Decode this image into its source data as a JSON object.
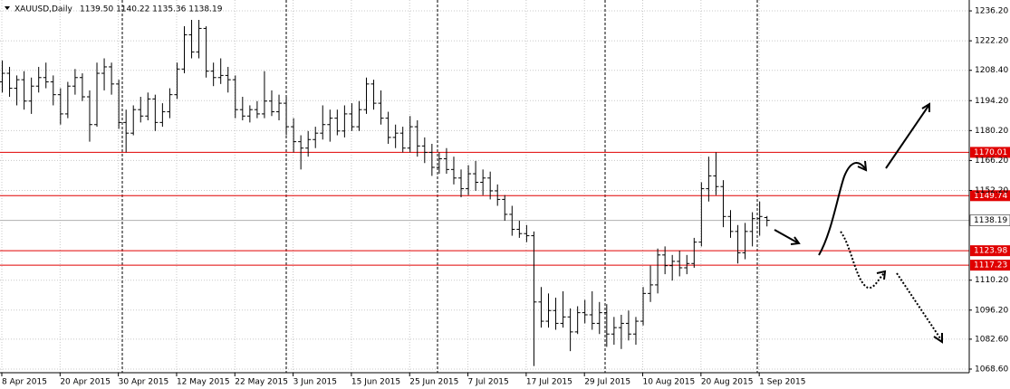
{
  "chart_data": {
    "type": "ohlc",
    "title": "XAUUSD,Daily",
    "ohlc_label": "1139.50 1140.22 1135.36 1138.19",
    "categories": [
      "8 Apr 2015",
      null,
      null,
      null,
      null,
      null,
      null,
      null,
      "20 Apr 2015",
      null,
      null,
      null,
      null,
      null,
      null,
      null,
      "30 Apr 2015",
      null,
      null,
      null,
      null,
      null,
      null,
      null,
      "12 May 2015",
      null,
      null,
      null,
      null,
      null,
      null,
      null,
      "22 May 2015",
      null,
      null,
      null,
      null,
      null,
      null,
      null,
      "3 Jun 2015",
      null,
      null,
      null,
      null,
      null,
      null,
      null,
      "15 Jun 2015",
      null,
      null,
      null,
      null,
      null,
      null,
      null,
      "25 Jun 2015",
      null,
      null,
      null,
      null,
      null,
      null,
      null,
      "7 Jul 2015",
      null,
      null,
      null,
      null,
      null,
      null,
      null,
      "17 Jul 2015",
      null,
      null,
      null,
      null,
      null,
      null,
      null,
      "29 Jul 2015",
      null,
      null,
      null,
      null,
      null,
      null,
      null,
      "10 Aug 2015",
      null,
      null,
      null,
      null,
      null,
      null,
      null,
      "20 Aug 2015",
      null,
      null,
      null,
      null,
      null,
      null,
      null,
      "1 Sep 2015",
      null
    ],
    "open": [
      1203,
      1207,
      1200,
      1204,
      1194,
      1201,
      1205,
      1203,
      1197,
      1188,
      1201,
      1205,
      1196,
      1183,
      1207,
      1210,
      1202,
      1184,
      1179,
      1190,
      1187,
      1195,
      1184,
      1189,
      1197,
      1209,
      1225,
      1217,
      1228,
      1208,
      1205,
      1206,
      1204,
      1190,
      1187,
      1190,
      1188,
      1194,
      1189,
      1193,
      1182,
      1175,
      1172,
      1176,
      1179,
      1183,
      1186,
      1180,
      1188,
      1182,
      1190,
      1202,
      1193,
      1186,
      1177,
      1179,
      1172,
      1182,
      1173,
      1170,
      1163,
      1167,
      1162,
      1158,
      1153,
      1160,
      1156,
      1158,
      1152,
      1148,
      1141,
      1134,
      1132,
      1131,
      1100,
      1091,
      1096,
      1090,
      1093,
      1086,
      1095,
      1094,
      1090,
      1095,
      1085,
      1088,
      1090,
      1085,
      1091,
      1104,
      1108,
      1122,
      1117,
      1119,
      1116,
      1118,
      1128,
      1153,
      1159,
      1154,
      1140,
      1133,
      1123,
      1133,
      1139,
      1139.5
    ],
    "high": [
      1213,
      1210,
      1206,
      1208,
      1205,
      1210,
      1212,
      1206,
      1200,
      1203,
      1209,
      1207,
      1199,
      1212,
      1214,
      1212,
      1204,
      1190,
      1192,
      1196,
      1198,
      1197,
      1193,
      1200,
      1212,
      1229,
      1232,
      1232,
      1229,
      1212,
      1214,
      1210,
      1206,
      1196,
      1192,
      1194,
      1208,
      1199,
      1197,
      1196,
      1186,
      1178,
      1180,
      1182,
      1192,
      1190,
      1190,
      1192,
      1193,
      1194,
      1205,
      1204,
      1199,
      1189,
      1183,
      1182,
      1187,
      1185,
      1177,
      1174,
      1170,
      1172,
      1168,
      1162,
      1164,
      1166,
      1162,
      1161,
      1155,
      1150,
      1145,
      1138,
      1136,
      1133,
      1107,
      1104,
      1102,
      1105,
      1097,
      1098,
      1101,
      1105,
      1100,
      1099,
      1093,
      1094,
      1096,
      1093,
      1107,
      1117,
      1125,
      1126,
      1122,
      1124,
      1122,
      1130,
      1156,
      1168,
      1170,
      1157,
      1143,
      1136,
      1137,
      1142,
      1147,
      1140.22
    ],
    "low": [
      1198,
      1196,
      1192,
      1190,
      1188,
      1198,
      1200,
      1192,
      1183,
      1186,
      1197,
      1194,
      1175,
      1182,
      1199,
      1197,
      1181,
      1170,
      1178,
      1184,
      1185,
      1180,
      1182,
      1186,
      1195,
      1207,
      1214,
      1214,
      1205,
      1201,
      1202,
      1198,
      1186,
      1185,
      1184,
      1186,
      1186,
      1187,
      1185,
      1178,
      1170,
      1162,
      1168,
      1172,
      1176,
      1175,
      1178,
      1177,
      1180,
      1180,
      1188,
      1190,
      1183,
      1174,
      1172,
      1170,
      1170,
      1168,
      1165,
      1159,
      1160,
      1160,
      1155,
      1149,
      1150,
      1152,
      1150,
      1148,
      1145,
      1138,
      1131,
      1130,
      1128,
      1070,
      1088,
      1088,
      1087,
      1088,
      1077,
      1085,
      1090,
      1087,
      1085,
      1079,
      1080,
      1078,
      1082,
      1080,
      1089,
      1100,
      1104,
      1113,
      1110,
      1112,
      1113,
      1116,
      1126,
      1147,
      1150,
      1135,
      1130,
      1118,
      1120,
      1126,
      1131,
      1135.36
    ],
    "close": [
      1207,
      1200,
      1204,
      1194,
      1201,
      1205,
      1203,
      1197,
      1188,
      1201,
      1205,
      1196,
      1183,
      1207,
      1210,
      1202,
      1184,
      1179,
      1190,
      1187,
      1195,
      1184,
      1189,
      1197,
      1209,
      1225,
      1217,
      1228,
      1208,
      1205,
      1206,
      1204,
      1190,
      1187,
      1190,
      1188,
      1194,
      1189,
      1193,
      1182,
      1175,
      1172,
      1176,
      1179,
      1183,
      1186,
      1180,
      1188,
      1182,
      1190,
      1202,
      1193,
      1186,
      1177,
      1179,
      1172,
      1182,
      1173,
      1170,
      1163,
      1167,
      1162,
      1158,
      1153,
      1160,
      1156,
      1158,
      1152,
      1148,
      1141,
      1134,
      1132,
      1131,
      1100,
      1091,
      1096,
      1090,
      1093,
      1086,
      1095,
      1094,
      1090,
      1095,
      1085,
      1088,
      1090,
      1085,
      1091,
      1104,
      1108,
      1122,
      1117,
      1119,
      1116,
      1118,
      1128,
      1153,
      1159,
      1154,
      1140,
      1133,
      1123,
      1133,
      1139,
      1140,
      1138.19
    ],
    "color": "#000000",
    "ylim": [
      1066.9,
      1241.3
    ],
    "yticks": [
      {
        "value": 1236.2,
        "label": "1236.20"
      },
      {
        "value": 1222.2,
        "label": "1222.20"
      },
      {
        "value": 1208.4,
        "label": "1208.40"
      },
      {
        "value": 1194.2,
        "label": "1194.20"
      },
      {
        "value": 1180.2,
        "label": "1180.20"
      },
      {
        "value": 1166.2,
        "label": "1166.20"
      },
      {
        "value": 1152.2,
        "label": "1152.20"
      },
      {
        "value": 1110.2,
        "label": "1110.20"
      },
      {
        "value": 1096.2,
        "label": "1096.20"
      },
      {
        "value": 1082.6,
        "label": "1082.60"
      },
      {
        "value": 1068.6,
        "label": "1068.60"
      }
    ],
    "grid": true,
    "levels": [
      1170.01,
      1149.74,
      1123.98,
      1117.23
    ],
    "level_color": "#e00000",
    "current_price": 1138.19
  }
}
